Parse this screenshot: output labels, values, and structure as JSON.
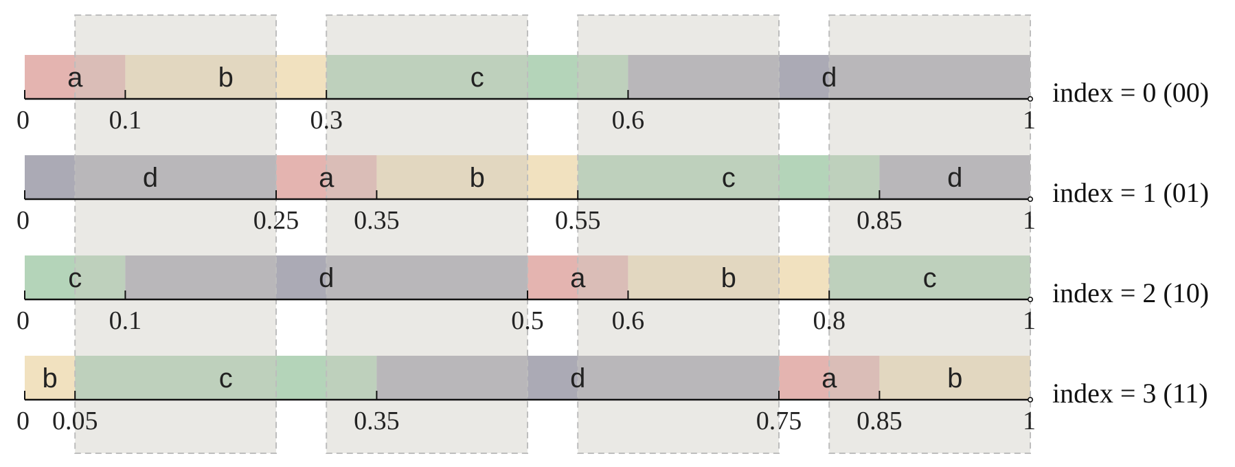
{
  "colors": {
    "a": "#e4b4b0",
    "b": "#f1e1bf",
    "c": "#b4d4b9",
    "d": "#abaab5",
    "band": "#cdcac2"
  },
  "shaded_bands": [
    [
      0.05,
      0.25
    ],
    [
      0.3,
      0.5
    ],
    [
      0.55,
      0.75
    ],
    [
      0.8,
      1.0
    ]
  ],
  "rows": [
    {
      "label": "index = 0 (00)",
      "segments": [
        {
          "name": "a",
          "start": 0,
          "end": 0.1
        },
        {
          "name": "b",
          "start": 0.1,
          "end": 0.3
        },
        {
          "name": "c",
          "start": 0.3,
          "end": 0.6
        },
        {
          "name": "d",
          "start": 0.6,
          "end": 1
        }
      ],
      "ticks": [
        {
          "value": 0,
          "label": "0"
        },
        {
          "value": 0.1,
          "label": "0.1"
        },
        {
          "value": 0.3,
          "label": "0.3"
        },
        {
          "value": 0.6,
          "label": "0.6"
        },
        {
          "value": 1,
          "label": "1"
        }
      ]
    },
    {
      "label": "index = 1 (01)",
      "segments": [
        {
          "name": "d",
          "start": 0,
          "end": 0.25
        },
        {
          "name": "a",
          "start": 0.25,
          "end": 0.35
        },
        {
          "name": "b",
          "start": 0.35,
          "end": 0.55
        },
        {
          "name": "c",
          "start": 0.55,
          "end": 0.85
        },
        {
          "name": "d",
          "start": 0.85,
          "end": 1
        }
      ],
      "ticks": [
        {
          "value": 0,
          "label": "0"
        },
        {
          "value": 0.25,
          "label": "0.25"
        },
        {
          "value": 0.35,
          "label": "0.35"
        },
        {
          "value": 0.55,
          "label": "0.55"
        },
        {
          "value": 0.85,
          "label": "0.85"
        },
        {
          "value": 1,
          "label": "1"
        }
      ]
    },
    {
      "label": "index = 2 (10)",
      "segments": [
        {
          "name": "c",
          "start": 0,
          "end": 0.1
        },
        {
          "name": "d",
          "start": 0.1,
          "end": 0.5
        },
        {
          "name": "a",
          "start": 0.5,
          "end": 0.6
        },
        {
          "name": "b",
          "start": 0.6,
          "end": 0.8
        },
        {
          "name": "c",
          "start": 0.8,
          "end": 1
        }
      ],
      "ticks": [
        {
          "value": 0,
          "label": "0"
        },
        {
          "value": 0.1,
          "label": "0.1"
        },
        {
          "value": 0.5,
          "label": "0.5"
        },
        {
          "value": 0.6,
          "label": "0.6"
        },
        {
          "value": 0.8,
          "label": "0.8"
        },
        {
          "value": 1,
          "label": "1"
        }
      ]
    },
    {
      "label": "index = 3 (11)",
      "segments": [
        {
          "name": "b",
          "start": 0,
          "end": 0.05
        },
        {
          "name": "c",
          "start": 0.05,
          "end": 0.35
        },
        {
          "name": "d",
          "start": 0.35,
          "end": 0.75
        },
        {
          "name": "a",
          "start": 0.75,
          "end": 0.85
        },
        {
          "name": "b",
          "start": 0.85,
          "end": 1
        }
      ],
      "ticks": [
        {
          "value": 0,
          "label": "0"
        },
        {
          "value": 0.05,
          "label": "0.05"
        },
        {
          "value": 0.35,
          "label": "0.35"
        },
        {
          "value": 0.75,
          "label": "0.75"
        },
        {
          "value": 0.85,
          "label": "0.85"
        },
        {
          "value": 1,
          "label": "1"
        }
      ]
    }
  ]
}
